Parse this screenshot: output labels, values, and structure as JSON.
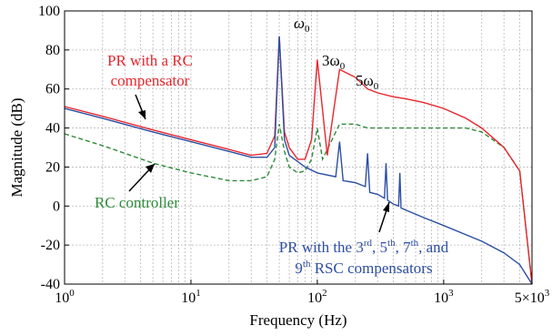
{
  "chart_data": {
    "type": "line",
    "xlabel": "Frequency (Hz)",
    "ylabel": "Magnitude (dB)",
    "xscale": "log",
    "xlim": [
      1,
      5000
    ],
    "ylim": [
      -40,
      100
    ],
    "grid": true,
    "x_tick_labels": [
      "10",
      "10",
      "10",
      "10",
      "5×10"
    ],
    "x_tick_exponents": [
      "0",
      "1",
      "2",
      "3",
      "3"
    ],
    "x_tick_values": [
      1,
      10,
      100,
      1000,
      5000
    ],
    "y_ticks": [
      -40,
      -20,
      0,
      20,
      40,
      60,
      80,
      100
    ],
    "y_tick_labels": [
      "-40",
      "-20",
      "0",
      "20",
      "40",
      "60",
      "80",
      "100"
    ],
    "series": [
      {
        "name": "PR with a RC compensator",
        "color": "#e8262d",
        "x": [
          1,
          2,
          5,
          10,
          20,
          30,
          40,
          46,
          50,
          55,
          60,
          70,
          80,
          90,
          100,
          120,
          150,
          200,
          250,
          300,
          400,
          500,
          700,
          1000,
          1500,
          2000,
          3000,
          4000,
          5000
        ],
        "y": [
          51,
          46,
          39,
          34,
          29,
          26,
          27,
          36,
          87,
          38,
          30,
          24,
          24,
          34,
          75,
          26,
          70,
          66,
          60,
          58,
          56,
          55,
          53,
          50,
          45,
          40,
          30,
          18,
          -40
        ]
      },
      {
        "name": "PR with the 3rd, 5th, 7th, and 9th RSC compensators",
        "color": "#2d4ea3",
        "x": [
          1,
          2,
          5,
          10,
          20,
          30,
          40,
          46,
          50,
          55,
          60,
          80,
          100,
          140,
          150,
          160,
          200,
          240,
          250,
          260,
          300,
          340,
          350,
          360,
          400,
          440,
          450,
          460,
          500,
          700,
          1000,
          2000,
          3000,
          4000,
          5000
        ],
        "y": [
          50,
          45,
          38,
          33,
          28,
          25,
          25,
          30,
          87,
          34,
          26,
          20,
          17,
          15,
          33,
          13,
          12,
          10,
          27,
          7,
          6,
          4,
          22,
          3,
          1,
          0,
          17,
          -1,
          -2,
          -6,
          -10,
          -18,
          -24,
          -30,
          -40
        ]
      },
      {
        "name": "RC controller",
        "color": "#2e8b3a",
        "x": [
          1,
          2,
          5,
          10,
          20,
          30,
          40,
          46,
          50,
          55,
          60,
          70,
          80,
          90,
          100,
          110,
          150,
          200,
          250,
          300,
          400,
          500,
          700,
          1000,
          1500,
          2000,
          3000,
          4000,
          5000
        ],
        "y": [
          37,
          31,
          22,
          17,
          13,
          13,
          15,
          24,
          42,
          28,
          20,
          17,
          18,
          24,
          40,
          24,
          42,
          42,
          40,
          40,
          40,
          40,
          40,
          40,
          40,
          38,
          30,
          18,
          -40
        ]
      }
    ],
    "annotations": {
      "w0": "ω",
      "w0_sub": "0",
      "w3": "3ω",
      "w3_sub": "0",
      "w5": "5ω",
      "w5_sub": "0",
      "pr_rc_line1": "PR with a RC",
      "pr_rc_line2": "compensator",
      "rc_ctrl": "RC controller",
      "rsc_line1_a": "PR with the 3",
      "rsc_sup1": "rd",
      "rsc_line1_b": ", 5",
      "rsc_sup2": "th",
      "rsc_line1_c": ", 7",
      "rsc_sup3": "th",
      "rsc_line1_d": ", and",
      "rsc_line2_a": "9",
      "rsc_sup4": "th",
      "rsc_line2_b": " RSC compensators"
    }
  }
}
